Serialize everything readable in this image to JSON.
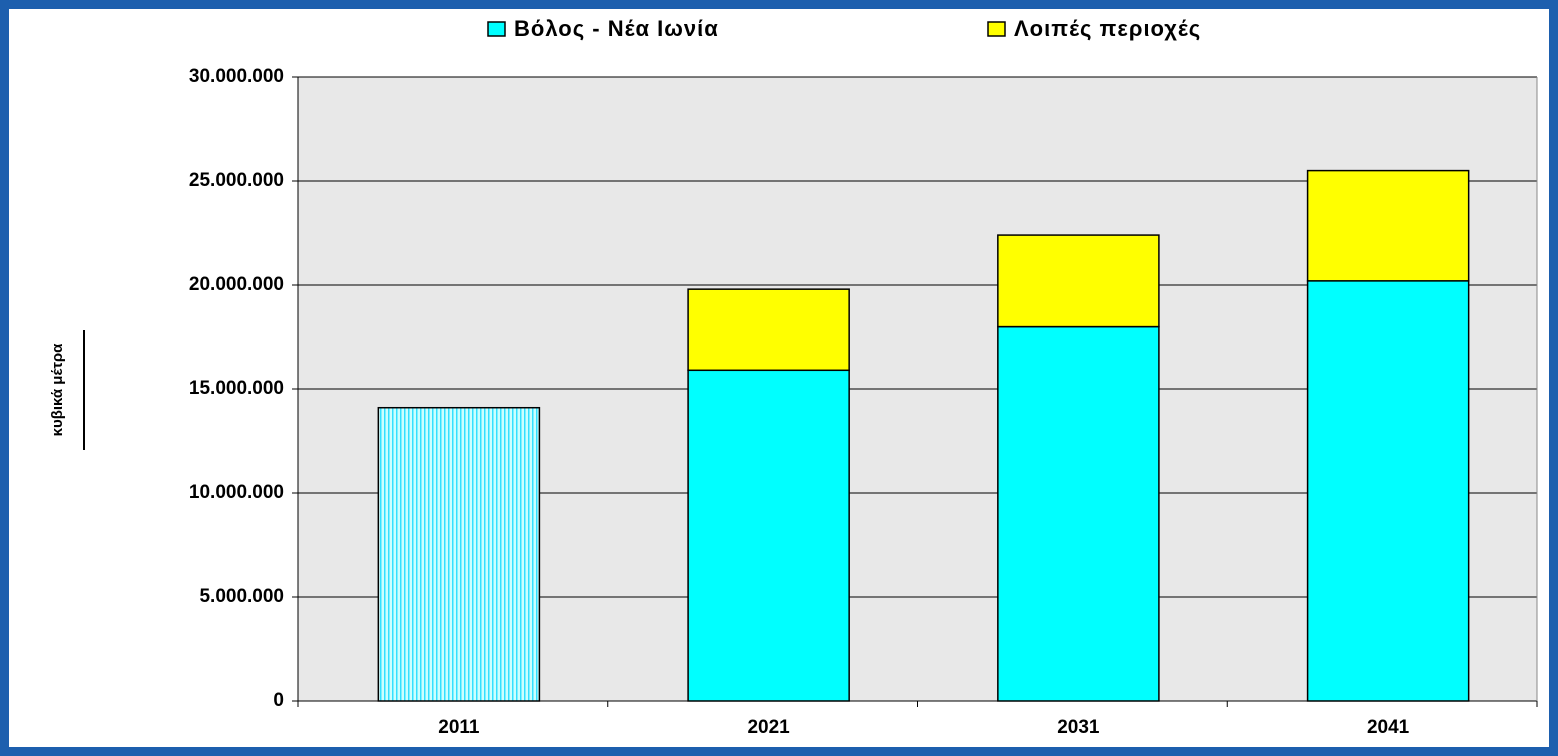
{
  "chart_data": {
    "type": "stacked_bar",
    "y_label": "κυβικά μέτρα",
    "categories": [
      "2011",
      "2021",
      "2031",
      "2041"
    ],
    "series": [
      {
        "name": "Βόλος - Νέα Ιωνία",
        "color": "#00ffff",
        "values": [
          14100000,
          15900000,
          18000000,
          20200000
        ]
      },
      {
        "name": "Λοιπές περιοχές",
        "color": "#ffff00",
        "values": [
          null,
          3900000,
          4400000,
          5300000
        ]
      }
    ],
    "ylim": [
      0,
      30000000
    ],
    "yticks": [
      0,
      {
        "value": 5000000,
        "label": "5.000.000"
      },
      {
        "value": 10000000,
        "label": "10.000.000"
      },
      {
        "value": 15000000,
        "label": "15.000.000"
      },
      {
        "value": 20000000,
        "label": "20.000.000"
      },
      {
        "value": 25000000,
        "label": "25.000.000"
      },
      {
        "value": 30000000,
        "label": "30.000.000"
      }
    ],
    "grid": true,
    "legend": "top",
    "plot_background": "#e8e8e8"
  }
}
